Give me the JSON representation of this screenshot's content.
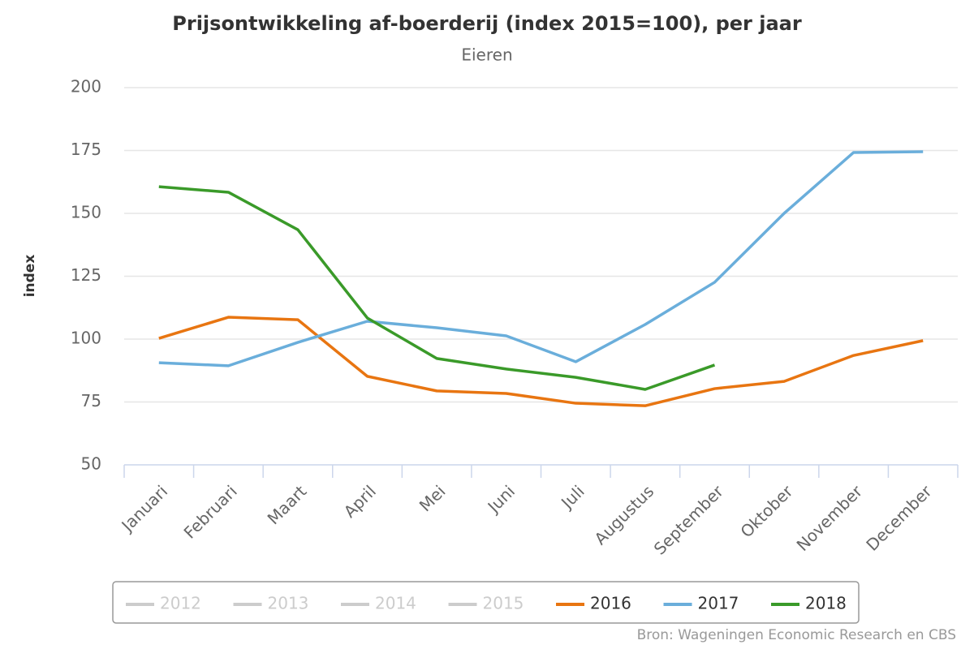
{
  "chart_data": {
    "type": "line",
    "title": "Prijsontwikkeling af-boerderij (index 2015=100), per jaar",
    "subtitle": "Eieren",
    "y_label": "index",
    "source": "Bron: Wageningen Economic Research en CBS",
    "categories": [
      "Januari",
      "Februari",
      "Maart",
      "April",
      "Mei",
      "Juni",
      "Juli",
      "Augustus",
      "September",
      "Oktober",
      "November",
      "December"
    ],
    "ylim": [
      50,
      200
    ],
    "yticks": [
      50,
      75,
      100,
      125,
      150,
      175,
      200
    ],
    "grid": true,
    "legend": "bottom",
    "series": [
      {
        "name": "2012",
        "color": "#cccccc",
        "visible": false,
        "values": [
          null,
          null,
          null,
          null,
          null,
          null,
          null,
          null,
          null,
          null,
          null,
          null
        ]
      },
      {
        "name": "2013",
        "color": "#cccccc",
        "visible": false,
        "values": [
          null,
          null,
          null,
          null,
          null,
          null,
          null,
          null,
          null,
          null,
          null,
          null
        ]
      },
      {
        "name": "2014",
        "color": "#cccccc",
        "visible": false,
        "values": [
          null,
          null,
          null,
          null,
          null,
          null,
          null,
          null,
          null,
          null,
          null,
          null
        ]
      },
      {
        "name": "2015",
        "color": "#cccccc",
        "visible": false,
        "values": [
          null,
          null,
          null,
          null,
          null,
          null,
          null,
          null,
          null,
          null,
          null,
          null
        ]
      },
      {
        "name": "2016",
        "color": "#e87511",
        "visible": true,
        "values": [
          100.3,
          108.7,
          107.7,
          85.2,
          79.4,
          78.4,
          74.5,
          73.5,
          80.3,
          83.2,
          93.5,
          99.4
        ]
      },
      {
        "name": "2017",
        "color": "#6aaedb",
        "visible": true,
        "values": [
          90.6,
          89.4,
          98.7,
          107.1,
          104.5,
          101.3,
          91.0,
          105.8,
          122.6,
          150.0,
          174.2,
          174.5
        ]
      },
      {
        "name": "2018",
        "color": "#3a9a29",
        "visible": true,
        "values": [
          160.6,
          158.4,
          143.5,
          108.4,
          92.3,
          88.1,
          84.8,
          80.0,
          89.7,
          null,
          null,
          null
        ]
      }
    ]
  }
}
